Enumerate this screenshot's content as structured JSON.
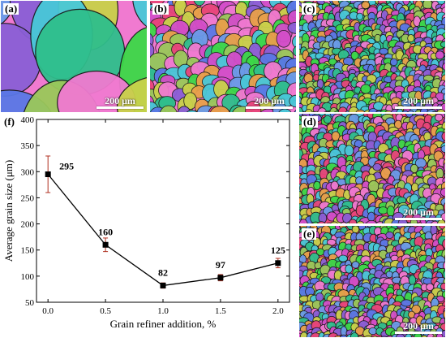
{
  "panels": {
    "a": {
      "label": "(a)",
      "scale": "200 μm"
    },
    "b": {
      "label": "(b)",
      "scale": "200 μm"
    },
    "c": {
      "label": "(c)",
      "scale": "200 μm"
    },
    "d": {
      "label": "(d)",
      "scale": "200 μm"
    },
    "e": {
      "label": "(e)",
      "scale": "200 μm"
    }
  },
  "micrograph_palette": [
    "#3cd848",
    "#2fbf8c",
    "#5a78e6",
    "#8a5fd6",
    "#d34ec9",
    "#e8457a",
    "#e8a04a",
    "#c9d14a",
    "#48c8d8",
    "#9ac85a",
    "#6a9be8",
    "#f07ad0"
  ],
  "chart_data": {
    "type": "line",
    "panel_label": "(f)",
    "xlabel": "Grain refiner addition, %",
    "ylabel": "Average grain size (μm)",
    "x": [
      0.0,
      0.5,
      1.0,
      1.5,
      2.0
    ],
    "y": [
      295,
      160,
      82,
      97,
      125
    ],
    "error": [
      35,
      13,
      5,
      6,
      9
    ],
    "point_labels": [
      "295",
      "160",
      "82",
      "97",
      "125"
    ],
    "xlim": [
      -0.1,
      2.1
    ],
    "ylim": [
      50,
      400
    ],
    "xticks": [
      "0.0",
      "0.5",
      "1.0",
      "1.5",
      "2.0"
    ],
    "yticks": [
      "50",
      "100",
      "150",
      "200",
      "250",
      "300",
      "350",
      "400"
    ],
    "line_color": "#000000",
    "marker_color": "#000000",
    "errorbar_color": "#b03020",
    "grid": false
  }
}
